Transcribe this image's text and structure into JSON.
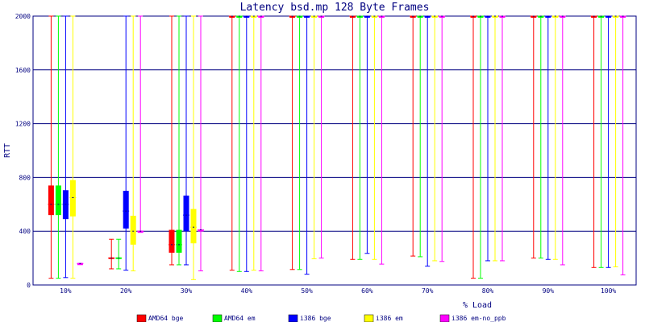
{
  "chart_data": {
    "type": "box",
    "title": "Latency bsd.mp 128 Byte Frames",
    "xlabel": "% Load",
    "ylabel": "RTT",
    "ylim": [
      0,
      2000
    ],
    "yticks": [
      "0",
      "400",
      "800",
      "1200",
      "1600",
      "2000"
    ],
    "categories": [
      "10%",
      "20%",
      "30%",
      "40%",
      "50%",
      "60%",
      "70%",
      "80%",
      "90%",
      "100%"
    ],
    "grid": true,
    "legend_position": "bottom",
    "series": [
      {
        "name": "AMD64 bge",
        "color": "#ff0000",
        "values": [
          {
            "min": 50,
            "q1": 520,
            "median": 600,
            "q3": 740,
            "max": 2000
          },
          {
            "min": 120,
            "q1": 195,
            "median": 200,
            "q3": 205,
            "max": 340
          },
          {
            "min": 150,
            "q1": 240,
            "median": 300,
            "q3": 410,
            "max": 2000
          },
          {
            "min": 110,
            "q1": 2000,
            "median": 2000,
            "q3": 2000,
            "max": 2000
          },
          {
            "min": 115,
            "q1": 2000,
            "median": 2000,
            "q3": 2000,
            "max": 2000
          },
          {
            "min": 190,
            "q1": 2000,
            "median": 2000,
            "q3": 2000,
            "max": 2000
          },
          {
            "min": 215,
            "q1": 2000,
            "median": 2000,
            "q3": 2000,
            "max": 2000
          },
          {
            "min": 50,
            "q1": 2000,
            "median": 2000,
            "q3": 2000,
            "max": 2000
          },
          {
            "min": 200,
            "q1": 2000,
            "median": 2000,
            "q3": 2000,
            "max": 2000
          },
          {
            "min": 130,
            "q1": 2000,
            "median": 2000,
            "q3": 2000,
            "max": 2000
          }
        ]
      },
      {
        "name": "AMD64 em",
        "color": "#00ff00",
        "values": [
          {
            "min": 50,
            "q1": 520,
            "median": 600,
            "q3": 740,
            "max": 2000
          },
          {
            "min": 120,
            "q1": 195,
            "median": 200,
            "q3": 205,
            "max": 340
          },
          {
            "min": 150,
            "q1": 240,
            "median": 300,
            "q3": 410,
            "max": 2000
          },
          {
            "min": 100,
            "q1": 2000,
            "median": 2000,
            "q3": 2000,
            "max": 2000
          },
          {
            "min": 115,
            "q1": 2000,
            "median": 2000,
            "q3": 2000,
            "max": 2000
          },
          {
            "min": 190,
            "q1": 2000,
            "median": 2000,
            "q3": 2000,
            "max": 2000
          },
          {
            "min": 210,
            "q1": 2000,
            "median": 2000,
            "q3": 2000,
            "max": 2000
          },
          {
            "min": 50,
            "q1": 2000,
            "median": 2000,
            "q3": 2000,
            "max": 2000
          },
          {
            "min": 200,
            "q1": 2000,
            "median": 2000,
            "q3": 2000,
            "max": 2000
          },
          {
            "min": 130,
            "q1": 2000,
            "median": 2000,
            "q3": 2000,
            "max": 2000
          }
        ]
      },
      {
        "name": "i386 bge",
        "color": "#0000ff",
        "values": [
          {
            "min": 55,
            "q1": 490,
            "median": 600,
            "q3": 705,
            "max": 2000
          },
          {
            "min": 110,
            "q1": 420,
            "median": 550,
            "q3": 700,
            "max": 2000
          },
          {
            "min": 150,
            "q1": 400,
            "median": 520,
            "q3": 665,
            "max": 2000
          },
          {
            "min": 100,
            "q1": 2000,
            "median": 2000,
            "q3": 2000,
            "max": 2000
          },
          {
            "min": 80,
            "q1": 2000,
            "median": 2000,
            "q3": 2000,
            "max": 2000
          },
          {
            "min": 235,
            "q1": 2000,
            "median": 2000,
            "q3": 2000,
            "max": 2000
          },
          {
            "min": 140,
            "q1": 2000,
            "median": 2000,
            "q3": 2000,
            "max": 2000
          },
          {
            "min": 180,
            "q1": 2000,
            "median": 2000,
            "q3": 2000,
            "max": 2000
          },
          {
            "min": 190,
            "q1": 2000,
            "median": 2000,
            "q3": 2000,
            "max": 2000
          },
          {
            "min": 130,
            "q1": 2000,
            "median": 2000,
            "q3": 2000,
            "max": 2000
          }
        ]
      },
      {
        "name": "i386 em",
        "color": "#ffff00",
        "values": [
          {
            "min": 50,
            "q1": 510,
            "median": 650,
            "q3": 780,
            "max": 2000
          },
          {
            "min": 105,
            "q1": 300,
            "median": 400,
            "q3": 515,
            "max": 2000
          },
          {
            "min": 40,
            "q1": 310,
            "median": 430,
            "q3": 565,
            "max": 2000
          },
          {
            "min": 110,
            "q1": 2000,
            "median": 2000,
            "q3": 2000,
            "max": 2000
          },
          {
            "min": 195,
            "q1": 2000,
            "median": 2000,
            "q3": 2000,
            "max": 2000
          },
          {
            "min": 190,
            "q1": 2000,
            "median": 2000,
            "q3": 2000,
            "max": 2000
          },
          {
            "min": 180,
            "q1": 2000,
            "median": 2000,
            "q3": 2000,
            "max": 2000
          },
          {
            "min": 180,
            "q1": 2000,
            "median": 2000,
            "q3": 2000,
            "max": 2000
          },
          {
            "min": 190,
            "q1": 2000,
            "median": 2000,
            "q3": 2000,
            "max": 2000
          },
          {
            "min": 135,
            "q1": 2000,
            "median": 2000,
            "q3": 2000,
            "max": 2000
          }
        ]
      },
      {
        "name": "i386 em-no_ppb",
        "color": "#ff00ff",
        "values": [
          {
            "min": 160,
            "q1": 160,
            "median": 160,
            "q3": 160,
            "max": 160
          },
          {
            "min": 400,
            "q1": 400,
            "median": 400,
            "q3": 400,
            "max": 2000
          },
          {
            "min": 105,
            "q1": 410,
            "median": 410,
            "q3": 410,
            "max": 2000
          },
          {
            "min": 105,
            "q1": 2000,
            "median": 2000,
            "q3": 2000,
            "max": 2000
          },
          {
            "min": 200,
            "q1": 2000,
            "median": 2000,
            "q3": 2000,
            "max": 2000
          },
          {
            "min": 155,
            "q1": 2000,
            "median": 2000,
            "q3": 2000,
            "max": 2000
          },
          {
            "min": 175,
            "q1": 2000,
            "median": 2000,
            "q3": 2000,
            "max": 2000
          },
          {
            "min": 180,
            "q1": 2000,
            "median": 2000,
            "q3": 2000,
            "max": 2000
          },
          {
            "min": 150,
            "q1": 2000,
            "median": 2000,
            "q3": 2000,
            "max": 2000
          },
          {
            "min": 75,
            "q1": 2000,
            "median": 2000,
            "q3": 2000,
            "max": 2000
          }
        ]
      }
    ]
  }
}
